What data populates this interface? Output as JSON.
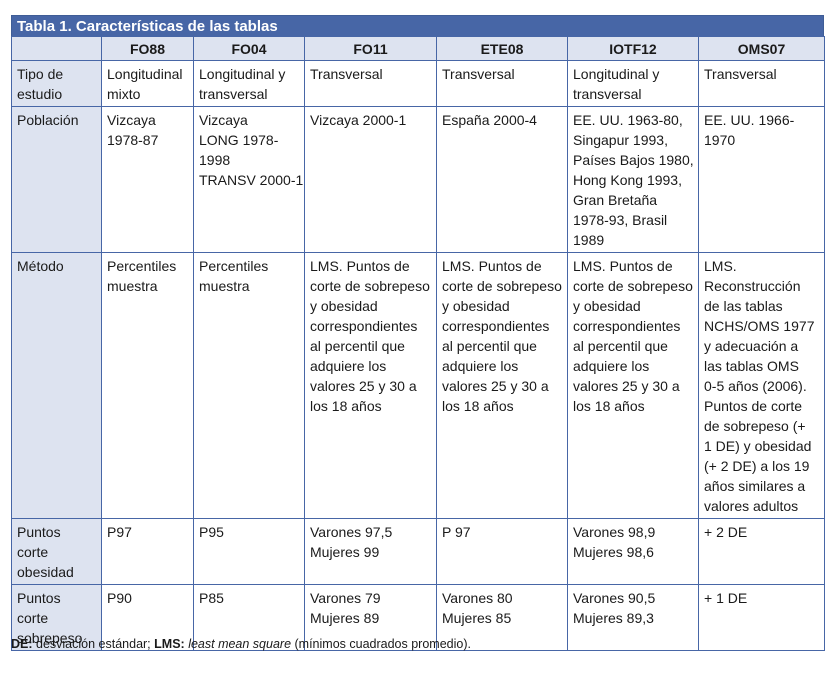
{
  "table": {
    "title": "Tabla 1. Características de las tablas",
    "columns": [
      "",
      "FO88",
      "FO04",
      "FO11",
      "ETE08",
      "IOTF12",
      "OMS07"
    ],
    "rows": [
      {
        "label": [
          "Tipo de",
          "estudio"
        ],
        "cells": [
          [
            "Longitudinal",
            "mixto"
          ],
          [
            "Longitudinal y",
            "transversal"
          ],
          [
            "Transversal"
          ],
          [
            "Transversal"
          ],
          [
            "Longitudinal y",
            "transversal"
          ],
          [
            "Transversal"
          ]
        ]
      },
      {
        "label": [
          "Población"
        ],
        "cells": [
          [
            "Vizcaya",
            "1978-87"
          ],
          [
            "Vizcaya",
            "LONG 1978-",
            "1998",
            "TRANSV 2000-1"
          ],
          [
            "Vizcaya 2000-1"
          ],
          [
            "España 2000-4"
          ],
          [
            "EE. UU. 1963-80,",
            "Singapur 1993,",
            "Países Bajos 1980,",
            "Hong Kong 1993,",
            "Gran Bretaña",
            "1978-93, Brasil",
            "1989"
          ],
          [
            "EE. UU. 1966-",
            "1970"
          ]
        ]
      },
      {
        "label": [
          "Método"
        ],
        "cells": [
          [
            "Percentiles",
            "muestra"
          ],
          [
            "Percentiles",
            "muestra"
          ],
          [
            "LMS. Puntos de",
            "corte de sobrepeso",
            "y obesidad",
            "correspondientes",
            "al percentil que",
            "adquiere los",
            "valores 25 y 30 a",
            "los 18 años"
          ],
          [
            "LMS. Puntos de",
            "corte de sobrepeso",
            "y obesidad",
            "correspondientes",
            "al percentil que",
            "adquiere los",
            "valores 25 y 30 a",
            "los 18 años"
          ],
          [
            "LMS. Puntos de",
            "corte de sobrepeso",
            "y obesidad",
            "correspondientes",
            "al percentil que",
            "adquiere los",
            "valores 25 y 30 a",
            "los 18 años"
          ],
          [
            "LMS.",
            "Reconstrucción",
            "de las tablas",
            "NCHS/OMS 1977",
            "y adecuación a",
            "las tablas OMS",
            "0-5 años (2006).",
            "Puntos de corte",
            "de sobrepeso (+",
            "1 DE) y obesidad",
            "(+ 2 DE) a los 19",
            "años similares a",
            "valores adultos"
          ]
        ]
      },
      {
        "label": [
          "Puntos",
          "corte",
          "obesidad"
        ],
        "cells": [
          [
            "P97"
          ],
          [
            "P95"
          ],
          [
            "Varones 97,5",
            "Mujeres 99"
          ],
          [
            "P 97"
          ],
          [
            "Varones 98,9",
            "Mujeres 98,6"
          ],
          [
            "+ 2 DE"
          ]
        ]
      },
      {
        "label": [
          "Puntos",
          "corte",
          "sobrepeso"
        ],
        "cells": [
          [
            "P90"
          ],
          [
            "P85"
          ],
          [
            "Varones 79",
            "Mujeres 89"
          ],
          [
            "Varones 80",
            "Mujeres 85"
          ],
          [
            "Varones 90,5",
            "Mujeres 89,3"
          ],
          [
            "+ 1 DE"
          ]
        ]
      }
    ]
  },
  "footnote": {
    "abbr1": "DE:",
    "text1": " desviación estándar; ",
    "abbr2": "LMS:",
    "text2_italic": "least mean square",
    "text3": " (mínimos cuadrados promedio)."
  },
  "colors": {
    "title_bg": "#4766a6",
    "header_bg": "#dde3f0",
    "border": "#4766a6"
  }
}
